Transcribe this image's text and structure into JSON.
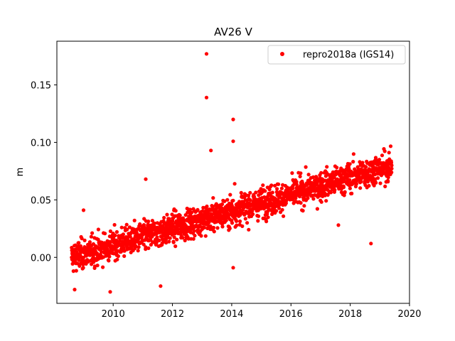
{
  "chart_data": {
    "type": "scatter",
    "title": "AV26 V",
    "xlabel": "",
    "ylabel": "m",
    "xlim": [
      2008.1,
      2020.0
    ],
    "ylim": [
      -0.04,
      0.188
    ],
    "xticks": [
      2010,
      2012,
      2014,
      2016,
      2018,
      2020
    ],
    "xtick_labels": [
      "2010",
      "2012",
      "2014",
      "2016",
      "2018",
      "2020"
    ],
    "yticks": [
      0.0,
      0.05,
      0.1,
      0.15
    ],
    "ytick_labels": [
      "0.00",
      "0.05",
      "0.10",
      "0.15"
    ],
    "grid": false,
    "legend_position": "top-right",
    "series": [
      {
        "name": "repro2018a (IGS14)",
        "color": "#ff0000",
        "marker": "circle",
        "x": [
          2008.6,
          2008.7,
          2008.8,
          2008.9,
          2009.0,
          2009.1,
          2009.2,
          2009.3,
          2009.4,
          2009.5,
          2009.6,
          2009.7,
          2009.8,
          2009.9,
          2010.0,
          2010.1,
          2010.2,
          2010.3,
          2010.4,
          2010.5,
          2010.6,
          2010.7,
          2010.8,
          2010.9,
          2011.0,
          2011.1,
          2011.2,
          2011.3,
          2011.4,
          2011.5,
          2011.6,
          2011.7,
          2011.8,
          2011.9,
          2012.0,
          2012.1,
          2012.2,
          2012.3,
          2012.4,
          2012.5,
          2012.6,
          2012.7,
          2012.8,
          2012.9,
          2013.0,
          2013.1,
          2013.2,
          2013.3,
          2013.4,
          2013.5,
          2013.6,
          2013.7,
          2013.8,
          2013.9,
          2014.0,
          2014.1,
          2014.2,
          2014.3,
          2014.4,
          2014.5,
          2014.6,
          2014.7,
          2014.8,
          2014.9,
          2015.0,
          2015.1,
          2015.2,
          2015.3,
          2015.4,
          2015.5,
          2015.6,
          2015.7,
          2015.8,
          2015.9,
          2016.0,
          2016.1,
          2016.2,
          2016.3,
          2016.4,
          2016.5,
          2016.6,
          2016.7,
          2016.8,
          2016.9,
          2017.0,
          2017.1,
          2017.2,
          2017.3,
          2017.4,
          2017.5,
          2017.6,
          2017.7,
          2017.8,
          2017.9,
          2018.0,
          2018.1,
          2018.2,
          2018.3,
          2018.4,
          2018.5,
          2018.6,
          2018.7,
          2018.8,
          2018.9,
          2019.0,
          2019.1,
          2019.2,
          2019.3,
          2019.4,
          2013.15,
          2013.15,
          2013.3,
          2014.05,
          2014.05,
          2014.05,
          2011.1,
          2009.0,
          2008.7,
          2009.9,
          2011.6,
          2014.1,
          2016.8,
          2017.6,
          2018.7
        ],
        "y": [
          0.0,
          -0.002,
          0.003,
          0.005,
          0.0,
          0.004,
          0.002,
          0.006,
          0.003,
          0.001,
          0.005,
          0.004,
          0.007,
          0.009,
          0.008,
          0.01,
          0.012,
          0.011,
          0.013,
          0.015,
          0.014,
          0.016,
          0.018,
          0.019,
          0.02,
          0.021,
          0.022,
          0.023,
          0.024,
          0.025,
          0.024,
          0.026,
          0.027,
          0.028,
          0.029,
          0.03,
          0.031,
          0.03,
          0.032,
          0.033,
          0.034,
          0.035,
          0.034,
          0.036,
          0.037,
          0.038,
          0.039,
          0.038,
          0.04,
          0.039,
          0.041,
          0.04,
          0.042,
          0.043,
          0.044,
          0.043,
          0.045,
          0.044,
          0.046,
          0.045,
          0.047,
          0.046,
          0.048,
          0.047,
          0.049,
          0.048,
          0.05,
          0.049,
          0.051,
          0.05,
          0.052,
          0.051,
          0.053,
          0.052,
          0.054,
          0.053,
          0.055,
          0.054,
          0.056,
          0.055,
          0.057,
          0.058,
          0.059,
          0.06,
          0.061,
          0.062,
          0.063,
          0.064,
          0.065,
          0.066,
          0.067,
          0.068,
          0.069,
          0.07,
          0.071,
          0.072,
          0.073,
          0.072,
          0.074,
          0.075,
          0.074,
          0.076,
          0.075,
          0.077,
          0.078,
          0.077,
          0.079,
          0.078,
          0.08,
          0.177,
          0.139,
          0.093,
          0.12,
          0.101,
          -0.009,
          0.068,
          0.041,
          -0.028,
          -0.03,
          -0.025,
          0.064,
          0.067,
          0.028,
          0.012
        ],
        "trend": {
          "x_start": 2008.6,
          "x_end": 2019.4,
          "y_start": 0.0,
          "y_end": 0.08,
          "scatter": 0.009
        }
      }
    ]
  }
}
